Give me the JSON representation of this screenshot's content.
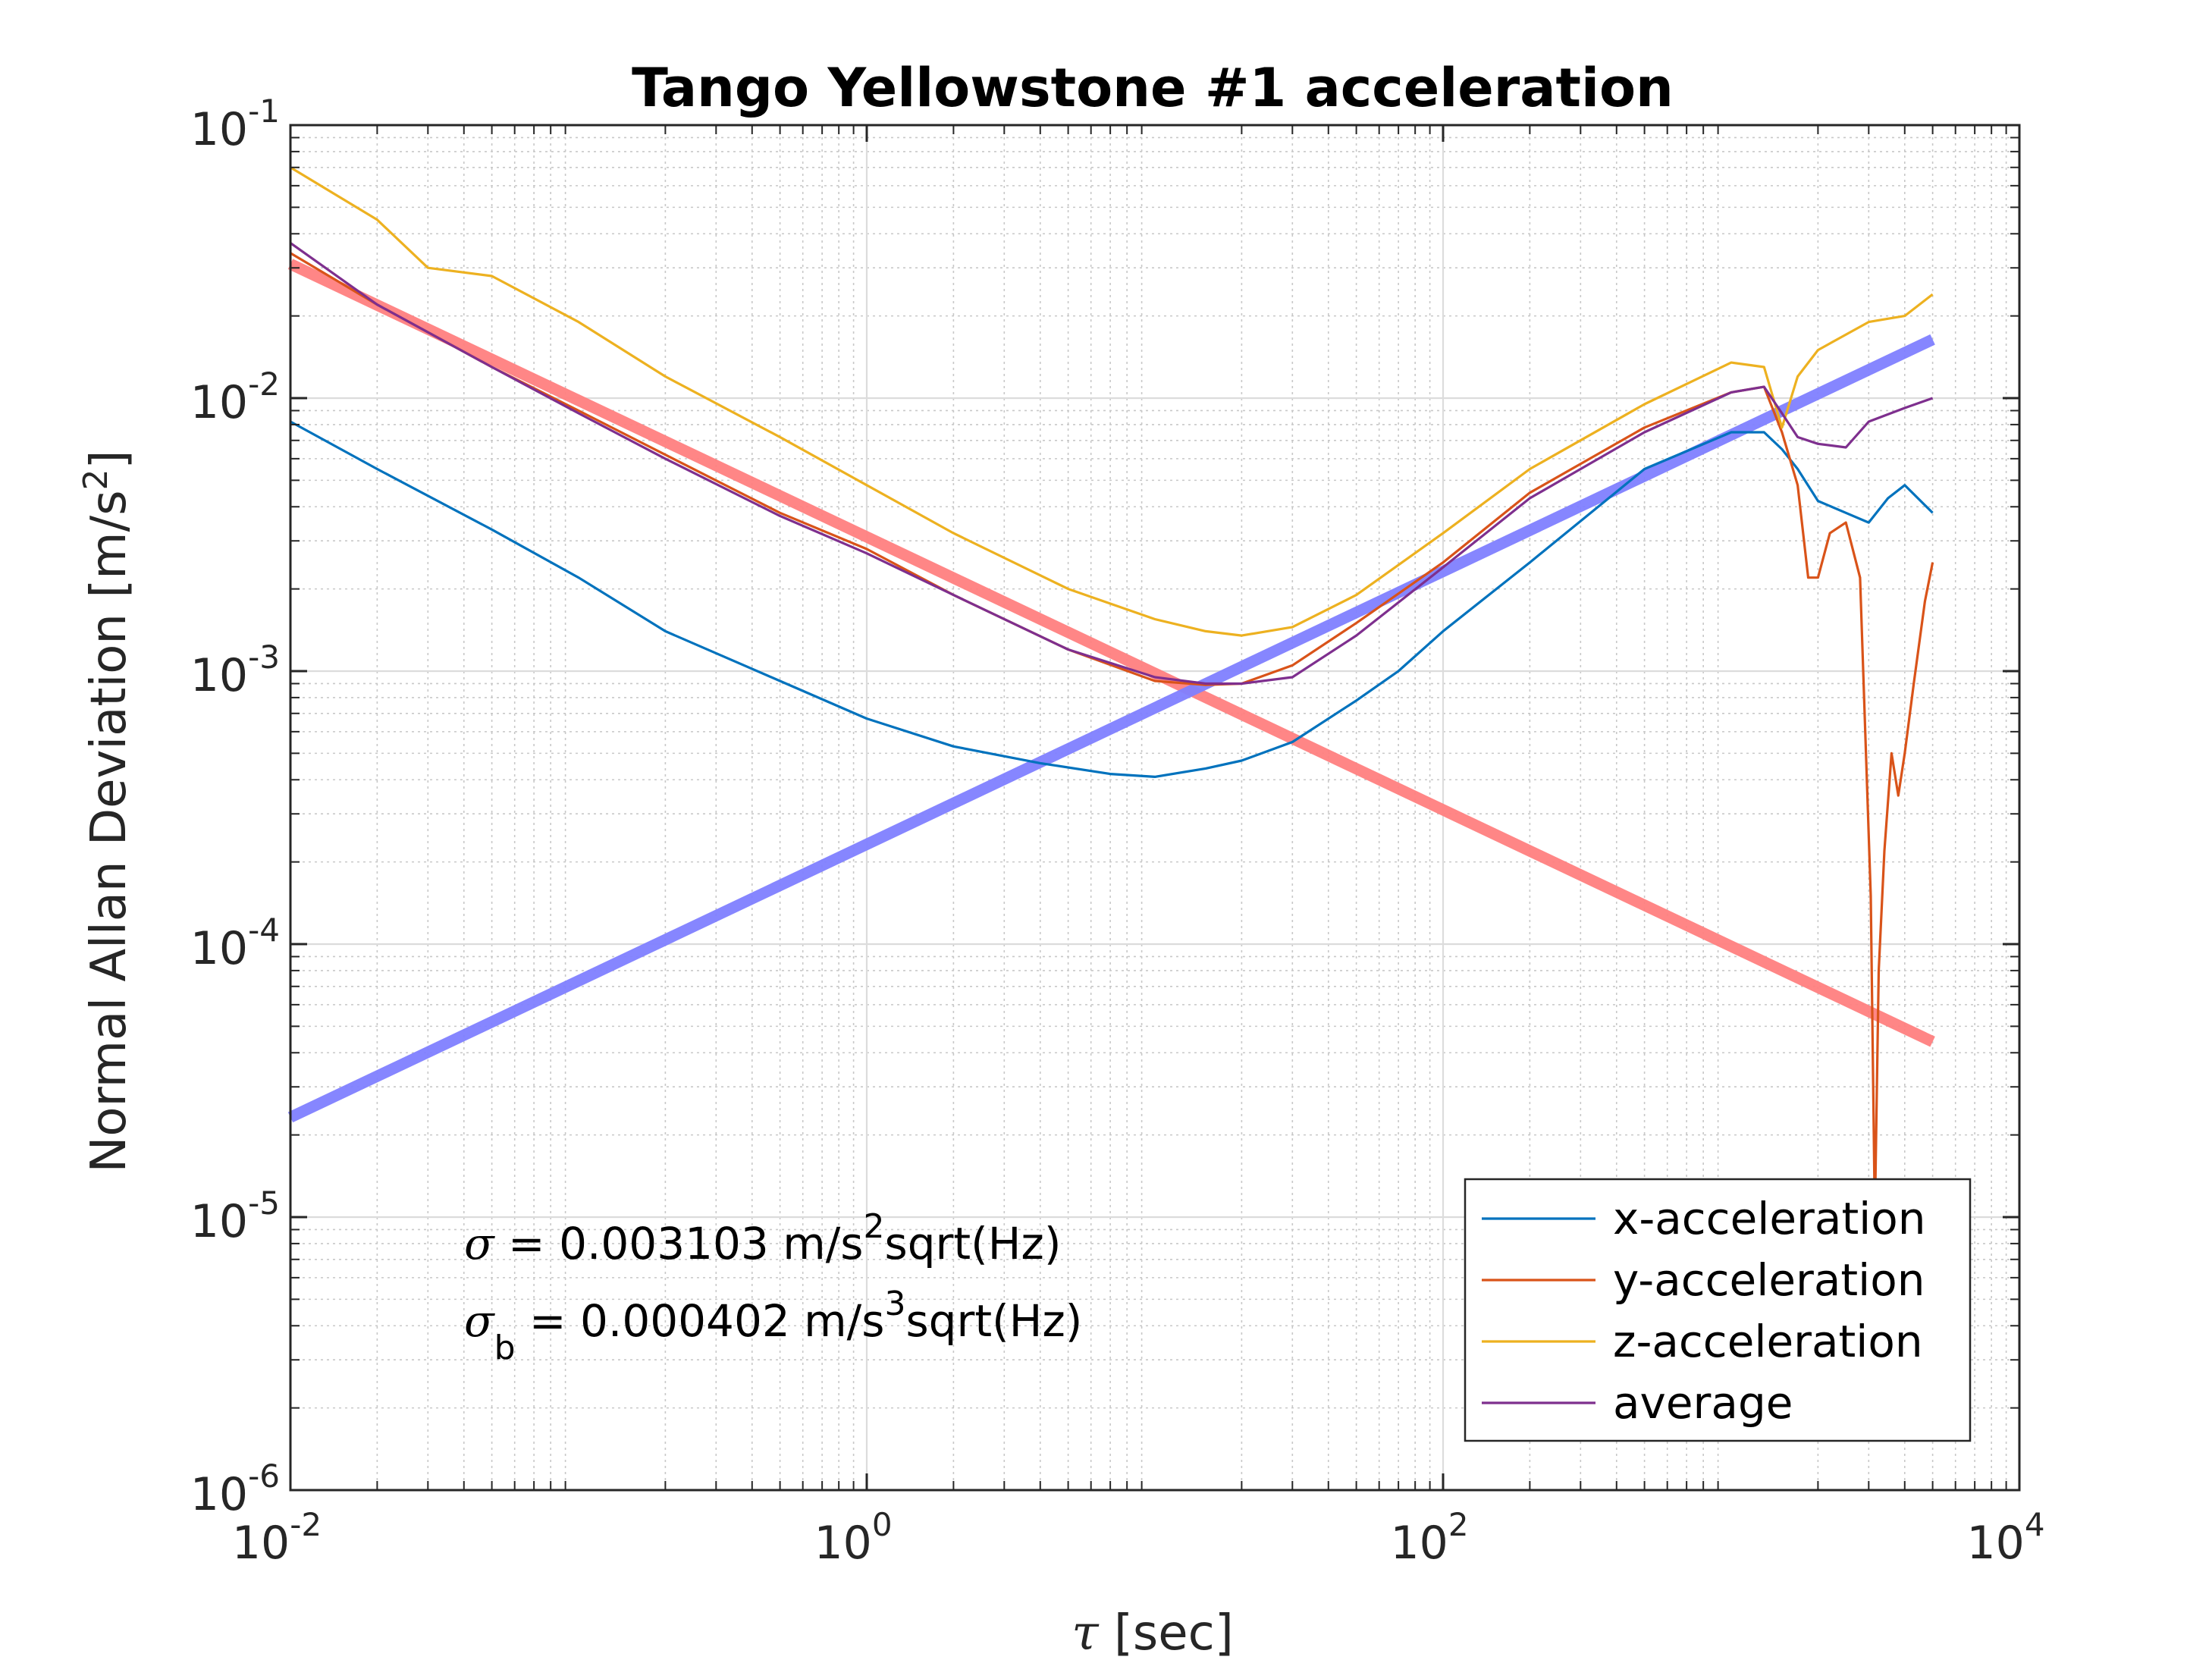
{
  "chart_data": {
    "type": "line",
    "title": "Tango Yellowstone #1 acceleration",
    "xlabel_symbol": "τ",
    "xlabel_text": " [sec]",
    "ylabel": "Normal Allan Deviation [m/s",
    "ylabel_exp": "2",
    "ylabel_end": "]",
    "x_scale": "log",
    "y_scale": "log",
    "xlim": [
      0.01,
      10000
    ],
    "ylim": [
      1e-06,
      0.1
    ],
    "grid": true,
    "x_ticks": [
      {
        "value": 0.01,
        "base": "10",
        "exp": "-2"
      },
      {
        "value": 1,
        "base": "10",
        "exp": "0"
      },
      {
        "value": 100,
        "base": "10",
        "exp": "2"
      },
      {
        "value": 10000,
        "base": "10",
        "exp": "4"
      }
    ],
    "y_ticks": [
      {
        "value": 0.1,
        "base": "10",
        "exp": "-1"
      },
      {
        "value": 0.01,
        "base": "10",
        "exp": "-2"
      },
      {
        "value": 0.001,
        "base": "10",
        "exp": "-3"
      },
      {
        "value": 0.0001,
        "base": "10",
        "exp": "-4"
      },
      {
        "value": 1e-05,
        "base": "10",
        "exp": "-5"
      },
      {
        "value": 1e-06,
        "base": "10",
        "exp": "-6"
      }
    ],
    "series": [
      {
        "name": "x-acceleration",
        "color": "#0072BD",
        "x": [
          0.01,
          0.02,
          0.05,
          0.1,
          0.2,
          0.5,
          1,
          2,
          4,
          7,
          10,
          15,
          20,
          30,
          50,
          70,
          100,
          200,
          500,
          1000,
          1300,
          1500,
          1700,
          2000,
          2500,
          3000,
          3500,
          4000,
          5000
        ],
        "y": [
          0.0082,
          0.0055,
          0.0033,
          0.0022,
          0.0014,
          0.00092,
          0.00067,
          0.00053,
          0.00046,
          0.00042,
          0.00041,
          0.00044,
          0.00047,
          0.00055,
          0.00078,
          0.001,
          0.0014,
          0.0025,
          0.0055,
          0.0075,
          0.0075,
          0.0065,
          0.0055,
          0.0042,
          0.0038,
          0.0035,
          0.0043,
          0.0048,
          0.0038
        ]
      },
      {
        "name": "y-acceleration",
        "color": "#D95319",
        "x": [
          0.01,
          0.02,
          0.05,
          0.1,
          0.2,
          0.5,
          1,
          2,
          5,
          10,
          15,
          20,
          30,
          50,
          100,
          200,
          500,
          1000,
          1300,
          1500,
          1700,
          1850,
          2000,
          2200,
          2500,
          2800,
          3050,
          3150,
          3250,
          3400,
          3600,
          3800,
          4000,
          4300,
          4700,
          5000
        ],
        "y": [
          0.034,
          0.022,
          0.013,
          0.009,
          0.0062,
          0.0038,
          0.0028,
          0.0019,
          0.0012,
          0.00092,
          0.00089,
          0.0009,
          0.00105,
          0.0015,
          0.0025,
          0.0045,
          0.0078,
          0.0105,
          0.011,
          0.0075,
          0.0048,
          0.0022,
          0.0022,
          0.0032,
          0.0035,
          0.0022,
          0.00015,
          1e-05,
          8e-05,
          0.00022,
          0.0005,
          0.00035,
          0.0005,
          0.0009,
          0.0018,
          0.0025
        ]
      },
      {
        "name": "z-acceleration",
        "color": "#EDB120",
        "x": [
          0.01,
          0.02,
          0.03,
          0.05,
          0.1,
          0.2,
          0.5,
          1,
          2,
          5,
          10,
          15,
          20,
          30,
          50,
          100,
          200,
          500,
          1000,
          1300,
          1500,
          1700,
          2000,
          3000,
          4000,
          5000
        ],
        "y": [
          0.07,
          0.045,
          0.03,
          0.028,
          0.019,
          0.012,
          0.0072,
          0.0048,
          0.0032,
          0.002,
          0.00155,
          0.0014,
          0.00135,
          0.00145,
          0.0019,
          0.0032,
          0.0055,
          0.0095,
          0.0135,
          0.013,
          0.0078,
          0.012,
          0.015,
          0.019,
          0.02,
          0.024
        ]
      },
      {
        "name": "average",
        "color": "#7E2F8E",
        "x": [
          0.01,
          0.02,
          0.05,
          0.1,
          0.2,
          0.5,
          1,
          2,
          5,
          10,
          15,
          20,
          30,
          50,
          100,
          200,
          500,
          1000,
          1300,
          1500,
          1700,
          2000,
          2500,
          3000,
          4000,
          5000
        ],
        "y": [
          0.037,
          0.022,
          0.013,
          0.0088,
          0.006,
          0.0037,
          0.0027,
          0.0019,
          0.0012,
          0.00095,
          0.0009,
          0.0009,
          0.00095,
          0.00135,
          0.0024,
          0.0043,
          0.0075,
          0.0105,
          0.011,
          0.0088,
          0.0072,
          0.0068,
          0.0066,
          0.0082,
          0.0092,
          0.01
        ]
      },
      {
        "name": "sigma fit",
        "color": "#FF7F7F",
        "legend": false,
        "x": [
          0.01,
          5000
        ],
        "y": [
          0.031,
          4.39e-05
        ]
      },
      {
        "name": "sigma_b fit",
        "color": "#7F7FFF",
        "legend": false,
        "x": [
          0.01,
          5000
        ],
        "y": [
          2.32e-05,
          0.0164
        ]
      }
    ],
    "legend": {
      "position": "bottom-right",
      "entries": [
        "x-acceleration",
        "y-acceleration",
        "z-acceleration",
        "average"
      ]
    },
    "annotations": [
      {
        "sym": "σ",
        "sub": "",
        "pre": " = 0.003103 m/s",
        "sup": "2",
        "post": "sqrt(Hz)"
      },
      {
        "sym": "σ",
        "sub": "b",
        "pre": " = 0.000402 m/s",
        "sup": "3",
        "post": "sqrt(Hz)"
      }
    ]
  }
}
